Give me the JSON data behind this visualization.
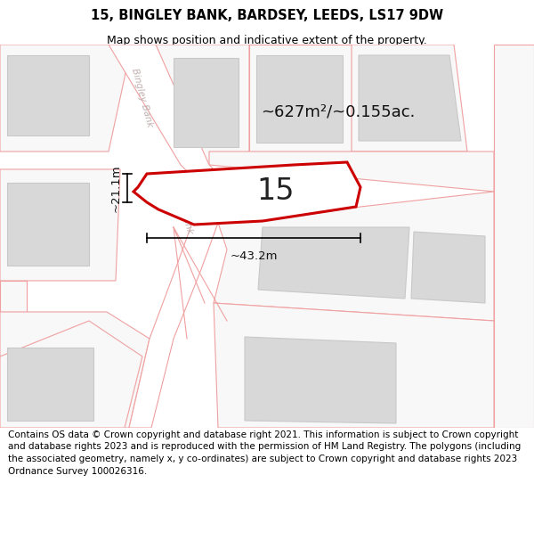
{
  "title": "15, BINGLEY BANK, BARDSEY, LEEDS, LS17 9DW",
  "subtitle": "Map shows position and indicative extent of the property.",
  "footer": "Contains OS data © Crown copyright and database right 2021. This information is subject to Crown copyright and database rights 2023 and is reproduced with the permission of HM Land Registry. The polygons (including the associated geometry, namely x, y co-ordinates) are subject to Crown copyright and database rights 2023 Ordnance Survey 100026316.",
  "area_label": "~627m²/~0.155ac.",
  "number_label": "15",
  "dim_width": "~43.2m",
  "dim_height": "~21.1m",
  "road_label": "Bingley Bank",
  "background_color": "#ffffff",
  "map_bg": "#f0f0f0",
  "parcel_fill": "#f8f8f8",
  "parcel_edge": "#f0a0a0",
  "building_fill": "#d8d8d8",
  "building_edge": "#c8c8c8",
  "road_fill": "#ffffff",
  "road_edge": "#f0a0a0",
  "plot_fill": "#ffffff",
  "plot_edge": "#cc0000",
  "dim_color": "#111111",
  "road_text_color": "#c0b0b0",
  "title_fontsize": 10.5,
  "subtitle_fontsize": 9,
  "footer_fontsize": 7.5,
  "number_fontsize": 24,
  "area_fontsize": 13,
  "dim_fontsize": 9.5,
  "road_label_fontsize": 7.5
}
